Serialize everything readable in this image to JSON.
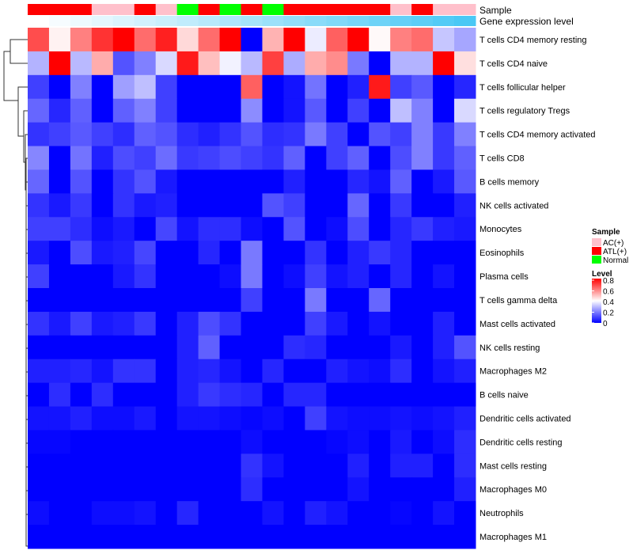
{
  "chart_data": {
    "type": "heatmap",
    "title": "",
    "annotation_labels": {
      "sample": "Sample",
      "gene": "Gene expression level"
    },
    "rows": [
      "T cells CD4 memory resting",
      "T cells CD4 naive",
      "T cells follicular helper",
      "T cells regulatory  Tregs",
      "T cells CD4 memory activated",
      "T cells CD8",
      "B cells memory",
      "NK cells activated",
      "Monocytes",
      "Eosinophils",
      "Plasma cells",
      "T cells gamma delta",
      "Mast cells activated",
      "NK cells resting",
      "Macrophages M2",
      "B cells naive",
      "Dendritic cells activated",
      "Dendritic cells resting",
      "Mast cells resting",
      "Macrophages M0",
      "Neutrophils",
      "Macrophages M1"
    ],
    "column_sample_groups": [
      "ATL(+)",
      "ATL(+)",
      "ATL(+)",
      "AC(+)",
      "AC(+)",
      "ATL(+)",
      "AC(+)",
      "Normal",
      "ATL(+)",
      "Normal",
      "ATL(+)",
      "Normal",
      "ATL(+)",
      "ATL(+)",
      "ATL(+)",
      "ATL(+)",
      "ATL(+)",
      "AC(+)",
      "ATL(+)",
      "AC(+)",
      "AC(+)"
    ],
    "column_gene_expression_level": [
      0,
      0.05,
      0.1,
      0.15,
      0.2,
      0.25,
      0.3,
      0.35,
      0.4,
      0.45,
      0.5,
      0.55,
      0.6,
      0.65,
      0.7,
      0.75,
      0.8,
      0.85,
      0.9,
      0.95,
      1
    ],
    "values": [
      [
        0.68,
        0.42,
        0.6,
        0.72,
        0.8,
        0.63,
        0.75,
        0.46,
        0.63,
        0.8,
        0,
        0.52,
        0.8,
        0.37,
        0.65,
        0.8,
        0.41,
        0.6,
        0.63,
        0.31,
        0.26
      ],
      [
        0.28,
        0.8,
        0.29,
        0.53,
        0.13,
        0.2,
        0.34,
        0.76,
        0.5,
        0.38,
        0.29,
        0.7,
        0.27,
        0.53,
        0.58,
        0.19,
        0,
        0.28,
        0.28,
        0.8,
        0.45
      ],
      [
        0.1,
        0,
        0.2,
        0,
        0.25,
        0.3,
        0.1,
        0,
        0,
        0,
        0.65,
        0,
        0.03,
        0.18,
        0,
        0.05,
        0.76,
        0.1,
        0.14,
        0,
        0.06
      ],
      [
        0.16,
        0.06,
        0.15,
        0,
        0.15,
        0.2,
        0.1,
        0,
        0,
        0,
        0.22,
        0,
        0.03,
        0.14,
        0,
        0.1,
        0,
        0.3,
        0.2,
        0,
        0.34
      ],
      [
        0.08,
        0.1,
        0.14,
        0.1,
        0.07,
        0.15,
        0.13,
        0.07,
        0.05,
        0.08,
        0.13,
        0.07,
        0.08,
        0.19,
        0.1,
        0,
        0.13,
        0.1,
        0.2,
        0.09,
        0.2
      ],
      [
        0.21,
        0,
        0.18,
        0.05,
        0.12,
        0.1,
        0.17,
        0.09,
        0.1,
        0.12,
        0.1,
        0.08,
        0.15,
        0,
        0.1,
        0.15,
        0,
        0.12,
        0.2,
        0.09,
        0.15
      ],
      [
        0.16,
        0,
        0.13,
        0,
        0.08,
        0.13,
        0.04,
        0,
        0,
        0,
        0,
        0,
        0.05,
        0,
        0,
        0.06,
        0.03,
        0.15,
        0,
        0.04,
        0.14
      ],
      [
        0.08,
        0.04,
        0.09,
        0,
        0.08,
        0.04,
        0.05,
        0,
        0,
        0,
        0,
        0.13,
        0.1,
        0,
        0,
        0.16,
        0,
        0.09,
        0,
        0,
        0.05
      ],
      [
        0.1,
        0.1,
        0.07,
        0.02,
        0.04,
        0,
        0.11,
        0.03,
        0.07,
        0.07,
        0.02,
        0,
        0.13,
        0,
        0.02,
        0.12,
        0,
        0.06,
        0.09,
        0.05,
        0.04
      ],
      [
        0.04,
        0,
        0.12,
        0.04,
        0.05,
        0.11,
        0,
        0,
        0.06,
        0,
        0.19,
        0,
        0,
        0.08,
        0,
        0.05,
        0.09,
        0.06,
        0,
        0,
        0
      ],
      [
        0.1,
        0,
        0,
        0,
        0.04,
        0.08,
        0,
        0,
        0,
        0.02,
        0.19,
        0,
        0.02,
        0.1,
        0.03,
        0.05,
        0,
        0.06,
        0,
        0.03,
        0
      ],
      [
        0,
        0,
        0,
        0,
        0,
        0,
        0,
        0,
        0,
        0,
        0.1,
        0,
        0,
        0.19,
        0,
        0,
        0.16,
        0,
        0,
        0,
        0
      ],
      [
        0.08,
        0.04,
        0.1,
        0.04,
        0.05,
        0.09,
        0,
        0.05,
        0.12,
        0.08,
        0,
        0,
        0,
        0.1,
        0.04,
        0,
        0.03,
        0,
        0,
        0.05,
        0
      ],
      [
        0,
        0,
        0,
        0,
        0,
        0,
        0,
        0.05,
        0.15,
        0,
        0,
        0,
        0.07,
        0.06,
        0,
        0,
        0,
        0.04,
        0,
        0.05,
        0.13
      ],
      [
        0.05,
        0.05,
        0.06,
        0.03,
        0.08,
        0.08,
        0,
        0.05,
        0.06,
        0.03,
        0,
        0.06,
        0,
        0,
        0.05,
        0.03,
        0.02,
        0.07,
        0,
        0.03,
        0.05
      ],
      [
        0,
        0.07,
        0,
        0.07,
        0,
        0,
        0,
        0.05,
        0.09,
        0.07,
        0.06,
        0,
        0.06,
        0.06,
        0,
        0,
        0,
        0,
        0,
        0,
        0
      ],
      [
        0.03,
        0.03,
        0.05,
        0.02,
        0.02,
        0.04,
        0,
        0.03,
        0.03,
        0.02,
        0.01,
        0.02,
        0,
        0.1,
        0.03,
        0.02,
        0.02,
        0.03,
        0.02,
        0.03,
        0.05
      ],
      [
        0.01,
        0.01,
        0,
        0,
        0,
        0,
        0,
        0,
        0,
        0,
        0.02,
        0,
        0,
        0,
        0.01,
        0.02,
        0,
        0.04,
        0,
        0.02,
        0.07
      ],
      [
        0,
        0,
        0,
        0,
        0,
        0,
        0,
        0,
        0,
        0,
        0.08,
        0.03,
        0,
        0,
        0,
        0.05,
        0,
        0.05,
        0.05,
        0,
        0.07
      ],
      [
        0,
        0,
        0,
        0,
        0,
        0,
        0,
        0,
        0,
        0,
        0.07,
        0,
        0,
        0,
        0,
        0.03,
        0,
        0,
        0,
        0,
        0.05
      ],
      [
        0.02,
        0,
        0,
        0.02,
        0.02,
        0.03,
        0,
        0.06,
        0,
        0,
        0,
        0.03,
        0,
        0.05,
        0.03,
        0,
        0,
        0.01,
        0,
        0.03,
        0
      ],
      [
        0,
        0,
        0,
        0,
        0,
        0,
        0,
        0,
        0,
        0,
        0,
        0,
        0,
        0,
        0,
        0,
        0,
        0,
        0,
        0,
        0
      ]
    ],
    "color_scale": {
      "low": "#0000FF",
      "mid": "#FFFFFF",
      "high": "#FF0000",
      "range": [
        0,
        0.8
      ]
    },
    "gene_level_colors": {
      "low": "#FFFFFF",
      "high": "#4AC8F5"
    },
    "legend": {
      "sample_title": "Sample",
      "sample_entries": [
        {
          "label": "AC(+)",
          "color": "#FFC0CB"
        },
        {
          "label": "ATL(+)",
          "color": "#FF0000"
        },
        {
          "label": "Normal",
          "color": "#00FF00"
        }
      ],
      "level_title": "Level",
      "level_ticks": [
        "0.8",
        "0.6",
        "0.4",
        "0.2",
        "0"
      ],
      "placement": "right"
    }
  }
}
